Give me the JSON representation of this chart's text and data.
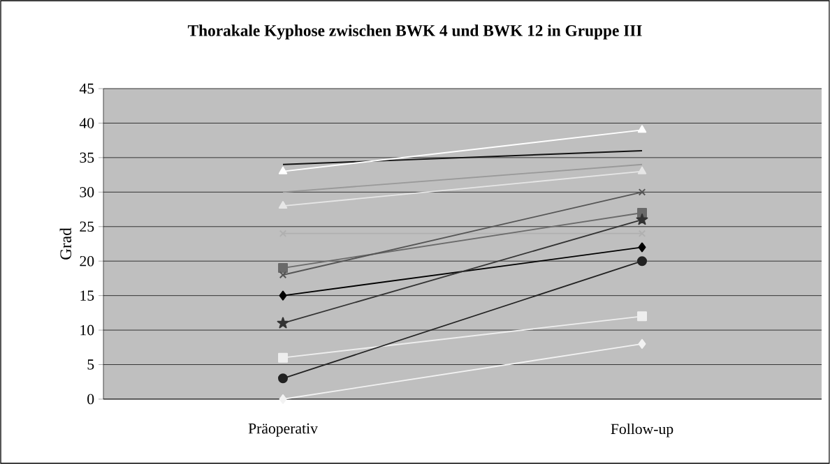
{
  "chart_data": {
    "type": "line",
    "title": "Thorakale Kyphose zwischen BWK 4 und BWK 12 in Gruppe III",
    "ylabel": "Grad",
    "categories": [
      "Präoperativ",
      "Follow-up"
    ],
    "ylim": [
      0,
      45
    ],
    "yticks": [
      0,
      5,
      10,
      15,
      20,
      25,
      30,
      35,
      40,
      45
    ],
    "grid": "y",
    "series": [
      {
        "color": "#111111",
        "marker": "none",
        "values": [
          34,
          36
        ]
      },
      {
        "color": "#ffffff",
        "marker": "triangle",
        "values": [
          33,
          39
        ]
      },
      {
        "color": "#999999",
        "marker": "none",
        "values": [
          30,
          34
        ]
      },
      {
        "color": "#e6e6e6",
        "marker": "triangle",
        "values": [
          28,
          33
        ]
      },
      {
        "color": "#b0b0b0",
        "marker": "cross",
        "values": [
          24,
          24
        ]
      },
      {
        "color": "#6a6a6a",
        "marker": "square",
        "values": [
          19,
          27
        ]
      },
      {
        "color": "#555555",
        "marker": "cross",
        "values": [
          18,
          30
        ]
      },
      {
        "color": "#000000",
        "marker": "diamond",
        "values": [
          15,
          22
        ]
      },
      {
        "color": "#333333",
        "marker": "star",
        "values": [
          11,
          26
        ]
      },
      {
        "color": "#eeeeee",
        "marker": "square",
        "values": [
          6,
          12
        ]
      },
      {
        "color": "#222222",
        "marker": "circle",
        "values": [
          3,
          20
        ]
      },
      {
        "color": "#f2f2f2",
        "marker": "diamond",
        "values": [
          0,
          8
        ]
      }
    ]
  }
}
